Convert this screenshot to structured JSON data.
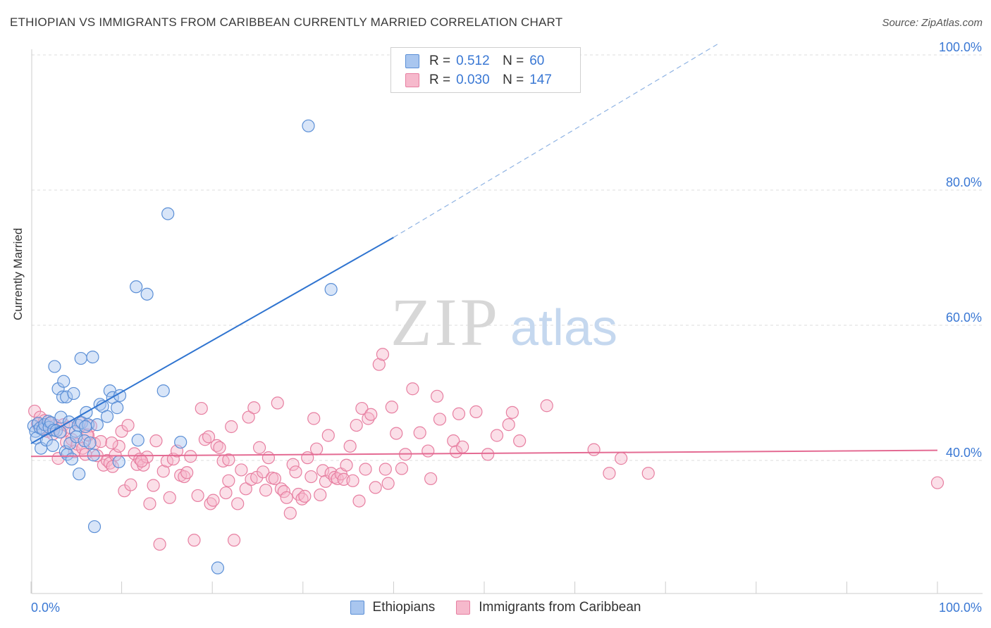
{
  "title": "ETHIOPIAN VS IMMIGRANTS FROM CARIBBEAN CURRENTLY MARRIED CORRELATION CHART",
  "source": "Source: ZipAtlas.com",
  "watermark": {
    "zip": "ZIP",
    "atlas": "atlas"
  },
  "legend": {
    "rows": [
      {
        "r_label": "R =",
        "r_value": "0.512",
        "n_label": "N =",
        "n_value": "60"
      },
      {
        "r_label": "R =",
        "r_value": "0.030",
        "n_label": "N =",
        "n_value": "147"
      }
    ]
  },
  "bottom_legend": [
    "Ethiopians",
    "Immigrants from Caribbean"
  ],
  "colors": {
    "blue_fill": "#a9c6ef",
    "blue_stroke": "#5b8fd6",
    "blue_line": "#2f74d0",
    "pink_fill": "#f6b9cc",
    "pink_stroke": "#e77fa1",
    "pink_line": "#e46b93",
    "tick_text": "#3a78d4",
    "grid": "#dcdcdc"
  },
  "chart_data": {
    "type": "scatter",
    "title": "ETHIOPIAN VS IMMIGRANTS FROM CARIBBEAN CURRENTLY MARRIED CORRELATION CHART",
    "xlabel": "",
    "ylabel": "Currently Married",
    "xlim": [
      0,
      100
    ],
    "ylim": [
      20,
      104
    ],
    "x_tick_labels": [
      "0.0%",
      "100.0%"
    ],
    "y_ticks": [
      40,
      60,
      80,
      100
    ],
    "y_tick_labels": [
      "40.0%",
      "60.0%",
      "80.0%",
      "100.0%"
    ],
    "series": [
      {
        "name": "Ethiopians",
        "r": 0.512,
        "n": 60,
        "trend": {
          "x0": 0,
          "y0": 42.5,
          "x1": 40,
          "y1": 73,
          "dash_to_x": 76,
          "dash_to_y": 101.8
        },
        "points": [
          [
            0.3,
            45.1
          ],
          [
            0.5,
            44.3
          ],
          [
            0.6,
            43.3
          ],
          [
            0.8,
            45.5
          ],
          [
            1.0,
            44.8
          ],
          [
            1.1,
            41.8
          ],
          [
            1.3,
            44.6
          ],
          [
            1.5,
            45.3
          ],
          [
            1.7,
            43.0
          ],
          [
            1.9,
            45.8
          ],
          [
            2.0,
            44.9
          ],
          [
            2.2,
            45.6
          ],
          [
            2.4,
            42.2
          ],
          [
            2.5,
            44.5
          ],
          [
            2.6,
            53.9
          ],
          [
            2.8,
            44.4
          ],
          [
            3.0,
            50.6
          ],
          [
            3.2,
            44.2
          ],
          [
            3.3,
            46.4
          ],
          [
            3.5,
            49.4
          ],
          [
            3.6,
            51.7
          ],
          [
            3.8,
            41.3
          ],
          [
            3.9,
            49.4
          ],
          [
            4.0,
            40.9
          ],
          [
            4.2,
            45.7
          ],
          [
            4.3,
            42.5
          ],
          [
            4.5,
            40.2
          ],
          [
            4.7,
            49.9
          ],
          [
            4.9,
            44.3
          ],
          [
            5.0,
            43.5
          ],
          [
            5.2,
            45.2
          ],
          [
            5.3,
            38.0
          ],
          [
            5.5,
            55.1
          ],
          [
            5.6,
            45.6
          ],
          [
            5.9,
            42.9
          ],
          [
            6.1,
            47.1
          ],
          [
            6.3,
            45.3
          ],
          [
            6.5,
            42.6
          ],
          [
            6.8,
            55.3
          ],
          [
            6.9,
            40.8
          ],
          [
            7.3,
            45.3
          ],
          [
            7.6,
            48.3
          ],
          [
            7.9,
            48.0
          ],
          [
            8.4,
            46.5
          ],
          [
            8.7,
            50.3
          ],
          [
            9.0,
            49.3
          ],
          [
            9.5,
            47.8
          ],
          [
            9.8,
            49.6
          ],
          [
            11.6,
            65.7
          ],
          [
            11.8,
            43.0
          ],
          [
            12.8,
            64.6
          ],
          [
            14.6,
            50.3
          ],
          [
            15.1,
            76.5
          ],
          [
            16.5,
            42.7
          ],
          [
            20.6,
            24.1
          ],
          [
            30.6,
            89.5
          ],
          [
            33.1,
            65.3
          ],
          [
            7.0,
            30.2
          ],
          [
            9.7,
            39.8
          ],
          [
            6.0,
            45.0
          ]
        ]
      },
      {
        "name": "Immigrants from Caribbean",
        "r": 0.03,
        "n": 147,
        "trend": {
          "x0": 0,
          "y0": 40.6,
          "x1": 100,
          "y1": 41.5
        },
        "points": [
          [
            0.4,
            47.3
          ],
          [
            0.7,
            45.4
          ],
          [
            1.0,
            46.4
          ],
          [
            1.2,
            44.8
          ],
          [
            1.5,
            45.9
          ],
          [
            1.8,
            44.3
          ],
          [
            2.1,
            45.5
          ],
          [
            2.4,
            43.9
          ],
          [
            2.7,
            45.2
          ],
          [
            3.0,
            40.3
          ],
          [
            3.3,
            44.2
          ],
          [
            3.6,
            45.3
          ],
          [
            3.9,
            42.7
          ],
          [
            4.2,
            44.9
          ],
          [
            4.5,
            43.1
          ],
          [
            4.8,
            41.3
          ],
          [
            5.1,
            42.4
          ],
          [
            5.4,
            45.6
          ],
          [
            5.7,
            41.8
          ],
          [
            6.0,
            40.9
          ],
          [
            6.3,
            43.7
          ],
          [
            6.6,
            45.1
          ],
          [
            7.0,
            42.5
          ],
          [
            7.3,
            40.7
          ],
          [
            7.7,
            42.8
          ],
          [
            8.0,
            39.3
          ],
          [
            8.4,
            40.0
          ],
          [
            8.7,
            39.6
          ],
          [
            9.0,
            39.1
          ],
          [
            9.3,
            40.8
          ],
          [
            9.7,
            42.1
          ],
          [
            10.0,
            44.3
          ],
          [
            10.3,
            35.5
          ],
          [
            10.7,
            45.2
          ],
          [
            11.0,
            36.4
          ],
          [
            11.4,
            41.0
          ],
          [
            11.7,
            39.4
          ],
          [
            12.0,
            40.2
          ],
          [
            12.4,
            39.3
          ],
          [
            12.8,
            40.5
          ],
          [
            13.1,
            33.6
          ],
          [
            13.5,
            36.3
          ],
          [
            13.8,
            42.9
          ],
          [
            14.2,
            27.6
          ],
          [
            14.6,
            38.4
          ],
          [
            15.0,
            39.9
          ],
          [
            15.3,
            34.5
          ],
          [
            15.7,
            40.2
          ],
          [
            16.1,
            41.4
          ],
          [
            16.5,
            37.8
          ],
          [
            16.9,
            37.6
          ],
          [
            17.2,
            38.2
          ],
          [
            17.6,
            40.6
          ],
          [
            18.0,
            28.2
          ],
          [
            18.4,
            34.8
          ],
          [
            18.8,
            47.7
          ],
          [
            19.2,
            43.1
          ],
          [
            19.6,
            43.5
          ],
          [
            19.8,
            33.6
          ],
          [
            20.1,
            34.1
          ],
          [
            20.5,
            42.2
          ],
          [
            20.8,
            41.9
          ],
          [
            21.2,
            39.9
          ],
          [
            21.5,
            35.2
          ],
          [
            21.8,
            37.0
          ],
          [
            22.1,
            45.0
          ],
          [
            22.4,
            28.2
          ],
          [
            22.8,
            33.6
          ],
          [
            23.2,
            38.6
          ],
          [
            23.7,
            35.8
          ],
          [
            24.0,
            46.4
          ],
          [
            24.3,
            37.2
          ],
          [
            24.6,
            47.8
          ],
          [
            24.9,
            37.5
          ],
          [
            25.2,
            41.9
          ],
          [
            25.6,
            38.3
          ],
          [
            25.9,
            35.6
          ],
          [
            26.2,
            40.4
          ],
          [
            26.6,
            37.4
          ],
          [
            26.9,
            37.3
          ],
          [
            27.2,
            48.5
          ],
          [
            27.6,
            35.8
          ],
          [
            27.9,
            35.4
          ],
          [
            28.2,
            34.5
          ],
          [
            28.6,
            32.2
          ],
          [
            28.9,
            39.4
          ],
          [
            29.2,
            38.3
          ],
          [
            29.5,
            35.0
          ],
          [
            29.9,
            34.3
          ],
          [
            30.2,
            34.7
          ],
          [
            30.5,
            40.4
          ],
          [
            30.9,
            37.6
          ],
          [
            31.2,
            46.2
          ],
          [
            31.5,
            41.7
          ],
          [
            31.9,
            34.9
          ],
          [
            32.2,
            38.5
          ],
          [
            32.5,
            36.9
          ],
          [
            32.8,
            43.7
          ],
          [
            33.1,
            38.1
          ],
          [
            33.5,
            37.5
          ],
          [
            33.8,
            37.3
          ],
          [
            34.2,
            38.0
          ],
          [
            34.5,
            37.2
          ],
          [
            34.8,
            39.3
          ],
          [
            35.2,
            42.1
          ],
          [
            35.5,
            37.0
          ],
          [
            35.9,
            45.2
          ],
          [
            36.2,
            34.0
          ],
          [
            36.5,
            47.7
          ],
          [
            36.9,
            38.7
          ],
          [
            37.2,
            46.2
          ],
          [
            37.5,
            46.8
          ],
          [
            38.0,
            36.0
          ],
          [
            38.4,
            54.2
          ],
          [
            38.8,
            55.7
          ],
          [
            39.1,
            38.7
          ],
          [
            39.4,
            36.6
          ],
          [
            39.8,
            47.9
          ],
          [
            40.3,
            44.0
          ],
          [
            40.9,
            38.8
          ],
          [
            41.3,
            40.9
          ],
          [
            42.1,
            50.6
          ],
          [
            42.9,
            44.1
          ],
          [
            43.8,
            41.4
          ],
          [
            44.1,
            37.3
          ],
          [
            44.8,
            49.5
          ],
          [
            45.1,
            46.1
          ],
          [
            46.6,
            42.9
          ],
          [
            46.9,
            41.3
          ],
          [
            47.2,
            46.9
          ],
          [
            47.6,
            42.0
          ],
          [
            49.1,
            47.2
          ],
          [
            50.4,
            40.9
          ],
          [
            51.4,
            43.7
          ],
          [
            52.7,
            45.3
          ],
          [
            53.1,
            47.1
          ],
          [
            53.9,
            42.9
          ],
          [
            56.9,
            48.1
          ],
          [
            62.1,
            41.6
          ],
          [
            63.8,
            38.1
          ],
          [
            65.1,
            40.3
          ],
          [
            68.1,
            38.1
          ],
          [
            100.0,
            36.7
          ],
          [
            6.2,
            43.8
          ],
          [
            8.9,
            42.6
          ],
          [
            12.2,
            39.9
          ],
          [
            21.8,
            40.1
          ]
        ]
      }
    ]
  }
}
